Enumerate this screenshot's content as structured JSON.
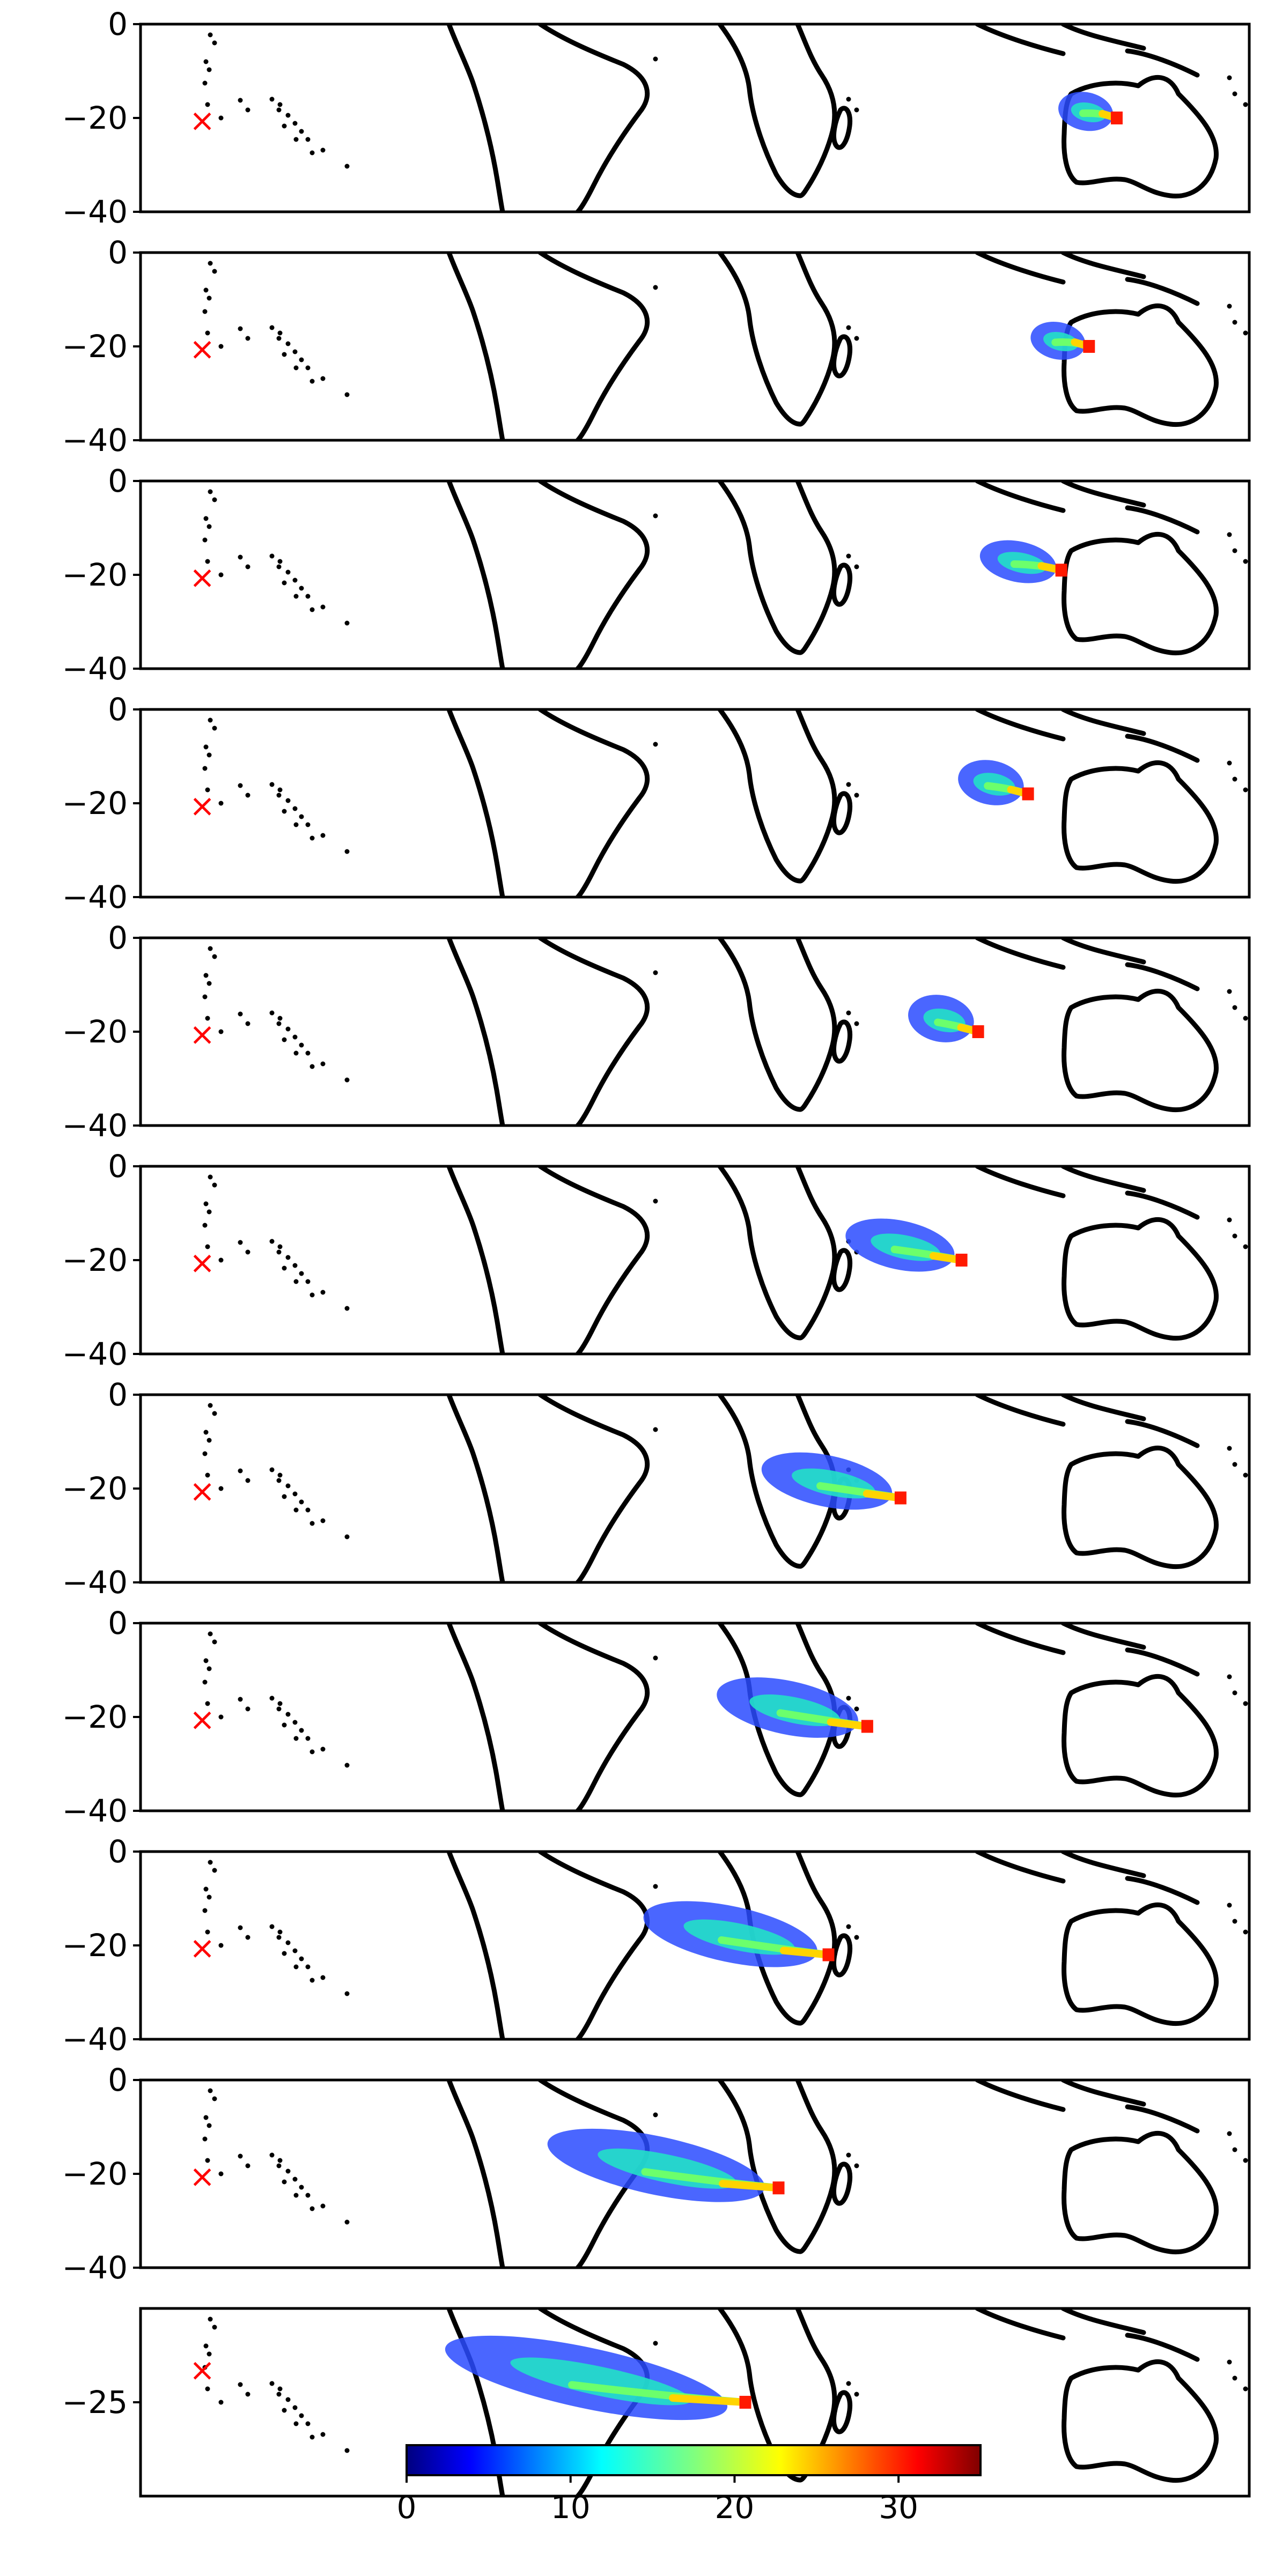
{
  "chart_data": {
    "type": "heatmap",
    "panel_count": 11,
    "source_marker": {
      "symbol": "×",
      "color": "#ff0000",
      "latitude": -20.5
    },
    "panels": [
      {
        "yticks": [
          0,
          -20,
          -40
        ],
        "ylim": [
          -40,
          0
        ],
        "plume": {
          "head_lon": 0.88,
          "head_lat": -20,
          "length": 0.05,
          "spread": 0.35
        }
      },
      {
        "yticks": [
          0,
          -20,
          -40
        ],
        "ylim": [
          -40,
          0
        ],
        "plume": {
          "head_lon": 0.855,
          "head_lat": -20,
          "length": 0.05,
          "spread": 0.3
        }
      },
      {
        "yticks": [
          0,
          -20,
          -40
        ],
        "ylim": [
          -40,
          0
        ],
        "plume": {
          "head_lon": 0.83,
          "head_lat": -19,
          "length": 0.07,
          "spread": 0.45
        }
      },
      {
        "yticks": [
          0,
          -20,
          -40
        ],
        "ylim": [
          -40,
          0
        ],
        "plume": {
          "head_lon": 0.8,
          "head_lat": -18,
          "length": 0.06,
          "spread": 0.6
        }
      },
      {
        "yticks": [
          0,
          -20,
          -40
        ],
        "ylim": [
          -40,
          0
        ],
        "plume": {
          "head_lon": 0.755,
          "head_lat": -20,
          "length": 0.06,
          "spread": 0.7
        }
      },
      {
        "yticks": [
          0,
          -20,
          -40
        ],
        "ylim": [
          -40,
          0
        ],
        "plume": {
          "head_lon": 0.74,
          "head_lat": -20,
          "length": 0.1,
          "spread": 0.8
        }
      },
      {
        "yticks": [
          0,
          -20,
          -40
        ],
        "ylim": [
          -40,
          0
        ],
        "plume": {
          "head_lon": 0.685,
          "head_lat": -22,
          "length": 0.12,
          "spread": 0.9
        }
      },
      {
        "yticks": [
          0,
          -20,
          -40
        ],
        "ylim": [
          -40,
          0
        ],
        "plume": {
          "head_lon": 0.655,
          "head_lat": -22,
          "length": 0.13,
          "spread": 1.0
        }
      },
      {
        "yticks": [
          0,
          -20,
          -40
        ],
        "ylim": [
          -40,
          0
        ],
        "plume": {
          "head_lon": 0.62,
          "head_lat": -22,
          "length": 0.16,
          "spread": 1.1
        }
      },
      {
        "yticks": [
          0,
          -20,
          -40
        ],
        "ylim": [
          -40,
          0
        ],
        "plume": {
          "head_lon": 0.575,
          "head_lat": -23,
          "length": 0.2,
          "spread": 1.2
        }
      },
      {
        "yticks": [
          -25
        ],
        "ylim": [
          -38,
          -12
        ],
        "plume": {
          "head_lon": 0.545,
          "head_lat": -25,
          "length": 0.26,
          "spread": 1.3
        }
      }
    ],
    "colorbar": {
      "colormap": "jet",
      "range": [
        0,
        35
      ],
      "ticks": [
        0,
        10,
        20,
        30
      ]
    }
  }
}
